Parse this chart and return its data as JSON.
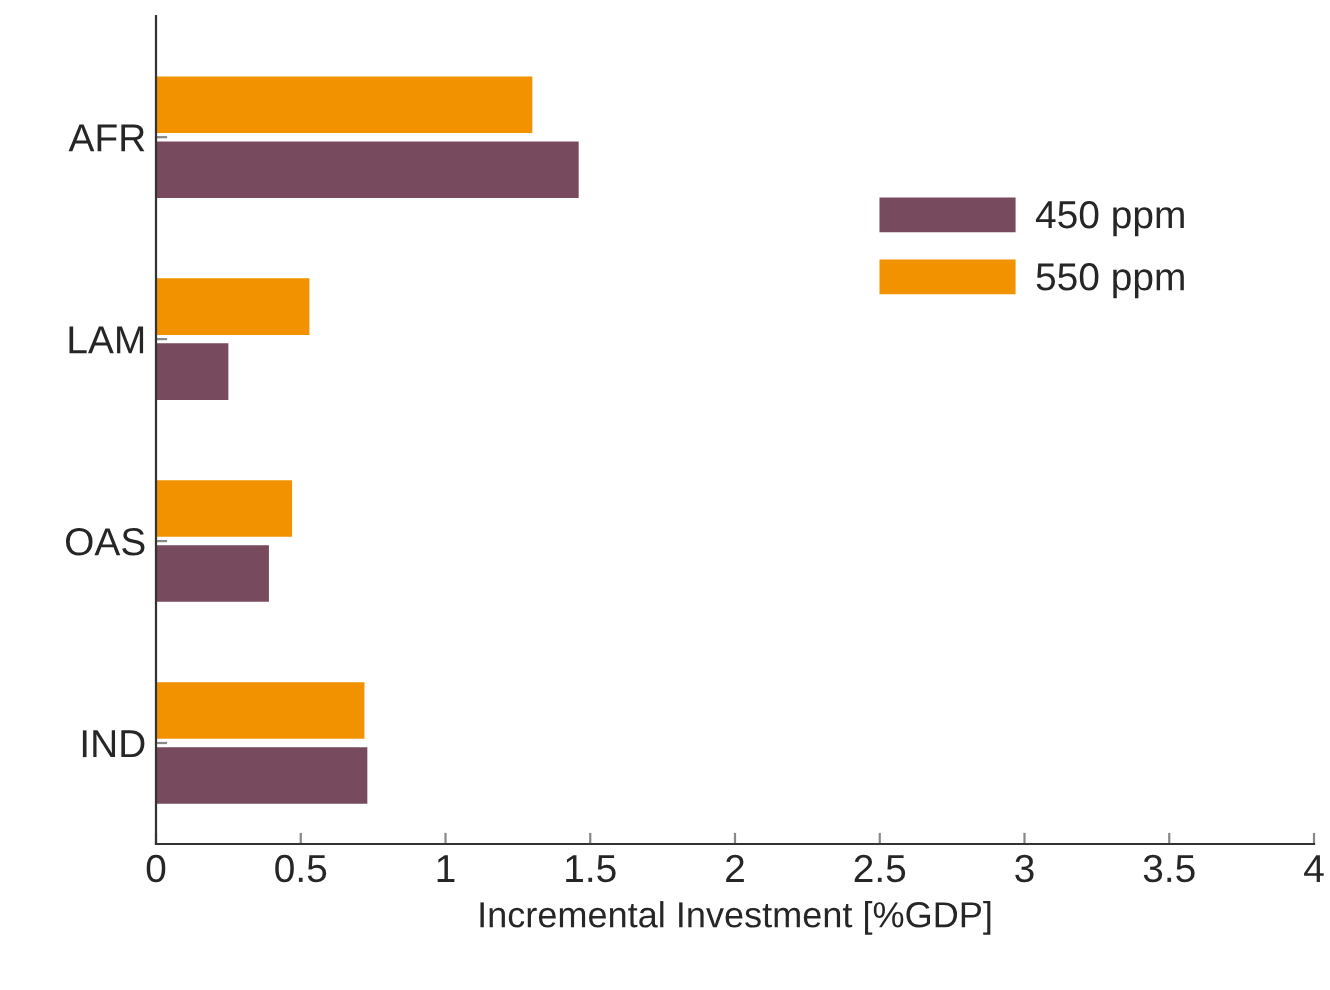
{
  "chart_data": {
    "type": "bar",
    "orientation": "horizontal",
    "xlabel": "Incremental Investment [%GDP]",
    "categories": [
      "AFR",
      "LAM",
      "OAS",
      "IND"
    ],
    "series": [
      {
        "name": "450 ppm",
        "color": "#774a5e",
        "values": [
          1.46,
          0.25,
          0.39,
          0.73
        ]
      },
      {
        "name": "550 ppm",
        "color": "#f39200",
        "values": [
          1.3,
          0.53,
          0.47,
          0.72
        ]
      }
    ],
    "xlim": [
      0,
      4
    ],
    "xticks": [
      0,
      0.5,
      1,
      1.5,
      2,
      2.5,
      3,
      3.5,
      4
    ],
    "grid": false,
    "legend": "right"
  }
}
